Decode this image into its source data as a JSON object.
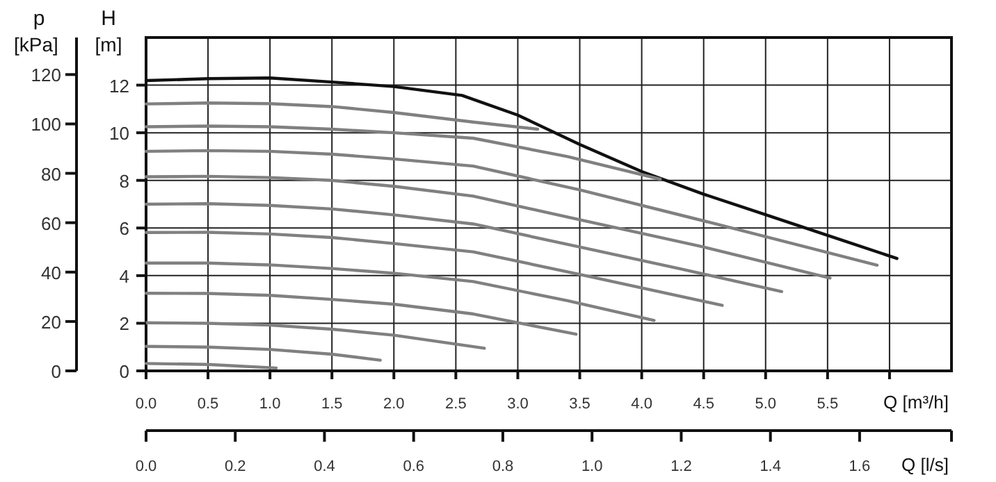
{
  "chart_data": {
    "type": "line",
    "xlabel": "Q [m³/h]",
    "ylabel": "H [m]",
    "y2label": "p [kPa]",
    "x2label": "Q [l/s]",
    "xlim": [
      0,
      6.5
    ],
    "ylim": [
      0,
      14
    ],
    "y2lim": [
      0,
      135
    ],
    "x2lim": [
      0,
      1.806
    ],
    "xticks": [
      {
        "value": 0,
        "label": "0.0"
      },
      {
        "value": 0.5,
        "label": "0.5"
      },
      {
        "value": 1,
        "label": "1.0"
      },
      {
        "value": 1.5,
        "label": "1.5"
      },
      {
        "value": 2,
        "label": "2.0"
      },
      {
        "value": 2.5,
        "label": "2.5"
      },
      {
        "value": 3,
        "label": "3.0"
      },
      {
        "value": 3.5,
        "label": "3.5"
      },
      {
        "value": 4,
        "label": "4.0"
      },
      {
        "value": 4.5,
        "label": "4.5"
      },
      {
        "value": 5,
        "label": "5.0"
      },
      {
        "value": 5.5,
        "label": "5.5"
      },
      {
        "value": 6,
        "label": null
      }
    ],
    "yticks": [
      0,
      2,
      4,
      6,
      8,
      10,
      12
    ],
    "y2ticks": [
      0,
      20,
      40,
      60,
      80,
      100,
      120
    ],
    "x2ticks": [
      {
        "value": 0,
        "label": "0.0"
      },
      {
        "value": 0.2,
        "label": "0.2"
      },
      {
        "value": 0.4,
        "label": "0.4"
      },
      {
        "value": 0.6,
        "label": "0.6"
      },
      {
        "value": 0.8,
        "label": "0.8"
      },
      {
        "value": 1,
        "label": "1.0"
      },
      {
        "value": 1.2,
        "label": "1.2"
      },
      {
        "value": 1.4,
        "label": "1.4"
      },
      {
        "value": 1.6,
        "label": "1.6"
      }
    ],
    "grid": true,
    "line_style": "solid",
    "series": [
      {
        "color": "#111111",
        "x": [
          0,
          0.5,
          1,
          1.5,
          2,
          2.55,
          3,
          3.5,
          4,
          4.5,
          5,
          5.5,
          6.06
        ],
        "values": [
          12.19,
          12.27,
          12.3,
          12.13,
          11.94,
          11.57,
          10.74,
          9.51,
          8.37,
          7.42,
          6.56,
          5.69,
          4.72
        ]
      },
      {
        "color": "#808080",
        "x": [
          0,
          0.5,
          1,
          1.5,
          2,
          2.64,
          3.16
        ],
        "values": [
          11.21,
          11.25,
          11.22,
          11.1,
          10.85,
          10.45,
          10.15
        ]
      },
      {
        "color": "#808080",
        "x": [
          0,
          0.5,
          1,
          1.5,
          2,
          2.64,
          3.4,
          4.15
        ],
        "values": [
          10.25,
          10.28,
          10.25,
          10.15,
          10,
          9.77,
          9,
          8.05
        ]
      },
      {
        "color": "#808080",
        "x": [
          0,
          0.5,
          1,
          1.5,
          2,
          2.64,
          3.5,
          4.5,
          5.9
        ],
        "values": [
          9.22,
          9.25,
          9.22,
          9.1,
          8.9,
          8.6,
          7.6,
          6.3,
          4.44
        ]
      },
      {
        "color": "#808080",
        "x": [
          0,
          0.5,
          1,
          1.5,
          2,
          2.64,
          3.5,
          4.5,
          5.52
        ],
        "values": [
          8.15,
          8.17,
          8.12,
          8,
          7.75,
          7.34,
          6.35,
          5.2,
          3.9
        ]
      },
      {
        "color": "#808080",
        "x": [
          0,
          0.5,
          1,
          1.5,
          2,
          2.64,
          3.5,
          4.3,
          5.13
        ],
        "values": [
          7,
          7.02,
          6.95,
          6.8,
          6.55,
          6.17,
          5.2,
          4.3,
          3.33
        ]
      },
      {
        "color": "#808080",
        "x": [
          0,
          0.5,
          1,
          1.5,
          2,
          2.64,
          3.5,
          4.65
        ],
        "values": [
          5.81,
          5.82,
          5.75,
          5.6,
          5.35,
          5,
          4.05,
          2.75
        ]
      },
      {
        "color": "#808080",
        "x": [
          0,
          0.5,
          1,
          1.5,
          2,
          2.64,
          3.4,
          4.1
        ],
        "values": [
          4.53,
          4.53,
          4.45,
          4.3,
          4.1,
          3.75,
          2.95,
          2.12
        ]
      },
      {
        "color": "#808080",
        "x": [
          0,
          0.5,
          1,
          1.5,
          2,
          2.64,
          3.47
        ],
        "values": [
          3.26,
          3.25,
          3.17,
          3,
          2.8,
          2.39,
          1.54
        ]
      },
      {
        "color": "#808080",
        "x": [
          0,
          0.5,
          1,
          1.5,
          2,
          2.73
        ],
        "values": [
          2.02,
          2,
          1.92,
          1.75,
          1.5,
          0.95
        ]
      },
      {
        "color": "#808080",
        "x": [
          0,
          0.5,
          1,
          1.5,
          1.89
        ],
        "values": [
          1.03,
          1,
          0.9,
          0.7,
          0.45
        ]
      },
      {
        "color": "#808080",
        "x": [
          0,
          0.5,
          1.05
        ],
        "values": [
          0.31,
          0.27,
          0.12
        ]
      }
    ]
  }
}
